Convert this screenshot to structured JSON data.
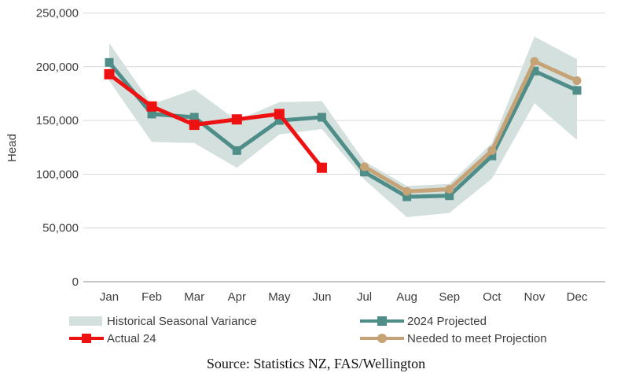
{
  "figure": {
    "source_line": "Source: Statistics NZ, FAS/Wellington"
  },
  "chart_data": {
    "type": "line",
    "title": "",
    "xlabel": "",
    "ylabel": "Head",
    "ylim": [
      0,
      250000
    ],
    "ytick_interval": 50000,
    "ytick_labels": [
      "0",
      "50,000",
      "100,000",
      "150,000",
      "200,000",
      "250,000"
    ],
    "categories": [
      "Jan",
      "Feb",
      "Mar",
      "Apr",
      "May",
      "Jun",
      "Jul",
      "Aug",
      "Sep",
      "Oct",
      "Nov",
      "Dec"
    ],
    "grid": "horizontal",
    "legend_position": "bottom",
    "colors": {
      "grid": "#d9d9d9",
      "axis": "#b3b3b3",
      "text": "#3d3d3d"
    },
    "series": [
      {
        "name": "Historical Seasonal Variance",
        "type": "band",
        "color": "#d3e0dd",
        "high": [
          222000,
          165000,
          179000,
          150000,
          167000,
          168000,
          112000,
          89000,
          91000,
          129000,
          228000,
          207000
        ],
        "low": [
          187000,
          130000,
          129000,
          106000,
          137000,
          142000,
          95000,
          60000,
          64000,
          96000,
          166000,
          132000
        ]
      },
      {
        "name": "2024 Projected",
        "type": "line",
        "color": "#4f8d89",
        "marker": "square",
        "marker_size": 11,
        "values": [
          204000,
          156000,
          153000,
          122000,
          150000,
          153000,
          102000,
          79000,
          80000,
          117000,
          196000,
          178000
        ]
      },
      {
        "name": "Actual 24",
        "type": "line",
        "color": "#ee1111",
        "marker": "square",
        "marker_size": 13,
        "values": [
          193000,
          163000,
          146000,
          151000,
          156000,
          106000,
          null,
          null,
          null,
          null,
          null,
          null
        ]
      },
      {
        "name": "Needed to meet Projection",
        "type": "line",
        "color": "#c5a376",
        "marker": "circle",
        "marker_size": 11,
        "values": [
          null,
          null,
          null,
          null,
          null,
          null,
          107000,
          84000,
          86000,
          122000,
          205000,
          187000
        ]
      }
    ]
  }
}
